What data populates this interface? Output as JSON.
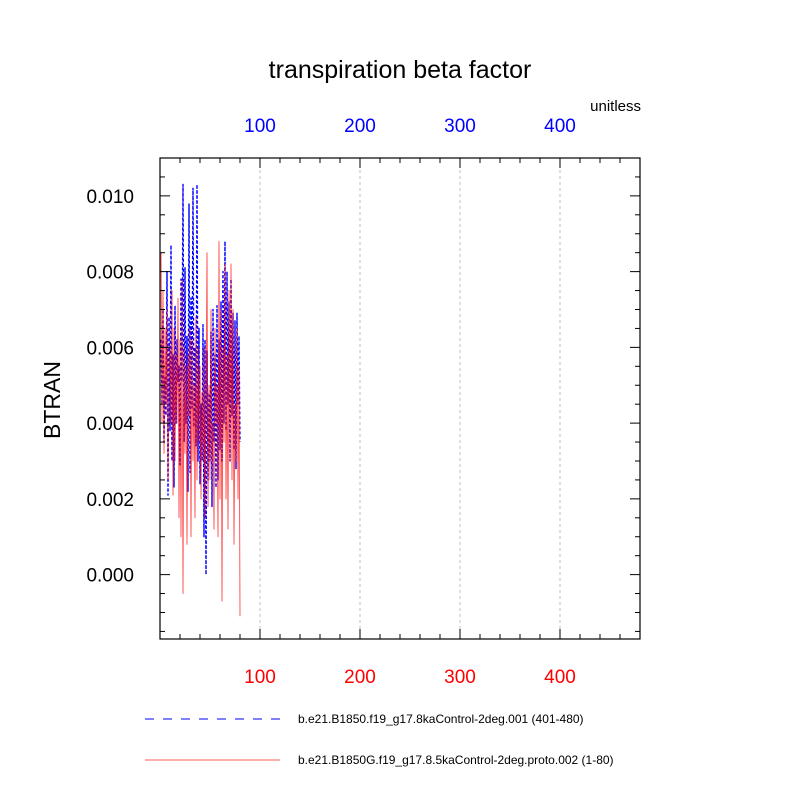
{
  "chart_data": {
    "type": "line",
    "title": "transpiration beta factor",
    "units_label": "unitless",
    "ylabel": "BTRAN",
    "xlabel": "",
    "xlim": [
      0,
      480
    ],
    "ylim": [
      -0.0017,
      0.011
    ],
    "x_ticks": [
      100,
      200,
      300,
      400
    ],
    "x_tick_labels": [
      "100",
      "200",
      "300",
      "400"
    ],
    "y_ticks": [
      0.0,
      0.002,
      0.004,
      0.006,
      0.008,
      0.01
    ],
    "y_tick_labels": [
      "0.000",
      "0.002",
      "0.004",
      "0.006",
      "0.008",
      "0.010"
    ],
    "top_axis_color": "#0000ff",
    "bottom_axis_color": "#ff0000",
    "grid": "vertical dashed at x ticks",
    "legend_placement": "bottom",
    "series": [
      {
        "name": "b.e21.B1850.f19_g17.8kaControl-2deg.001 (401-480)",
        "color": "#0000ff",
        "dash": "dashed",
        "x": [
          1,
          2,
          3,
          4,
          5,
          6,
          7,
          8,
          9,
          10,
          11,
          12,
          13,
          14,
          15,
          16,
          17,
          18,
          19,
          20,
          21,
          22,
          23,
          24,
          25,
          26,
          27,
          28,
          29,
          30,
          31,
          32,
          33,
          34,
          35,
          36,
          37,
          38,
          39,
          40,
          41,
          42,
          43,
          44,
          45,
          46,
          47,
          48,
          49,
          50,
          51,
          52,
          53,
          54,
          55,
          56,
          57,
          58,
          59,
          60,
          61,
          62,
          63,
          64,
          65,
          66,
          67,
          68,
          69,
          70,
          71,
          72,
          73,
          74,
          75,
          76,
          77,
          78,
          79,
          80
        ],
        "y": [
          0.0062,
          0.0045,
          0.007,
          0.0035,
          0.0052,
          0.0042,
          0.008,
          0.0021,
          0.0068,
          0.0038,
          0.0087,
          0.003,
          0.0058,
          0.0023,
          0.0071,
          0.004,
          0.0062,
          0.0051,
          0.0055,
          0.0029,
          0.0078,
          0.0051,
          0.0103,
          0.0035,
          0.0081,
          0.004,
          0.0063,
          0.0022,
          0.0098,
          0.0027,
          0.0073,
          0.0044,
          0.0102,
          0.0039,
          0.006,
          0.0034,
          0.0103,
          0.003,
          0.0065,
          0.0024,
          0.0045,
          0.003,
          0.0066,
          0.001,
          0.0062,
          0.0,
          0.0059,
          0.0025,
          0.0048,
          0.003,
          0.0064,
          0.0018,
          0.007,
          0.0035,
          0.0058,
          0.0023,
          0.0071,
          0.0025,
          0.0062,
          0.0033,
          0.0072,
          0.003,
          0.008,
          0.004,
          0.0088,
          0.0038,
          0.008,
          0.0045,
          0.0072,
          0.003,
          0.0078,
          0.0042,
          0.0069,
          0.0033,
          0.0067,
          0.0028,
          0.0069,
          0.0045,
          0.0063,
          0.0035
        ]
      },
      {
        "name": "b.e21.B1850G.f19_g17.8.5kaControl-2deg.proto.002 (1-80)",
        "color": "#ff0000",
        "dash": "solid",
        "x": [
          1,
          2,
          3,
          4,
          5,
          6,
          7,
          8,
          9,
          10,
          11,
          12,
          13,
          14,
          15,
          16,
          17,
          18,
          19,
          20,
          21,
          22,
          23,
          24,
          25,
          26,
          27,
          28,
          29,
          30,
          31,
          32,
          33,
          34,
          35,
          36,
          37,
          38,
          39,
          40,
          41,
          42,
          43,
          44,
          45,
          46,
          47,
          48,
          49,
          50,
          51,
          52,
          53,
          54,
          55,
          56,
          57,
          58,
          59,
          60,
          61,
          62,
          63,
          64,
          65,
          66,
          67,
          68,
          69,
          70,
          71,
          72,
          73,
          74,
          75,
          76,
          77,
          78,
          79,
          80
        ],
        "y": [
          0.0085,
          0.004,
          0.0075,
          0.0032,
          0.0065,
          0.0045,
          0.007,
          0.0025,
          0.0055,
          0.006,
          0.004,
          0.0075,
          0.0021,
          0.0065,
          0.003,
          0.0058,
          0.004,
          0.0073,
          0.0015,
          0.0062,
          0.001,
          0.0078,
          -0.0005,
          0.006,
          0.0032,
          0.0055,
          0.0008,
          0.0058,
          0.0042,
          0.0065,
          0.001,
          0.0062,
          0.003,
          0.005,
          0.0015,
          0.0068,
          0.0025,
          0.006,
          0.0035,
          0.0055,
          0.002,
          0.0048,
          0.003,
          0.006,
          0.0015,
          0.0045,
          0.0085,
          0.0018,
          0.005,
          0.0025,
          0.007,
          0.003,
          0.004,
          0.0012,
          0.0065,
          0.004,
          0.005,
          0.001,
          0.0088,
          0.002,
          0.007,
          -0.0007,
          0.006,
          0.0035,
          0.0082,
          0.002,
          0.0058,
          0.0012,
          0.0075,
          0.003,
          0.0082,
          0.0025,
          0.007,
          0.0008,
          0.0045,
          0.003,
          0.0065,
          0.002,
          0.0055,
          -0.0011
        ]
      }
    ]
  }
}
